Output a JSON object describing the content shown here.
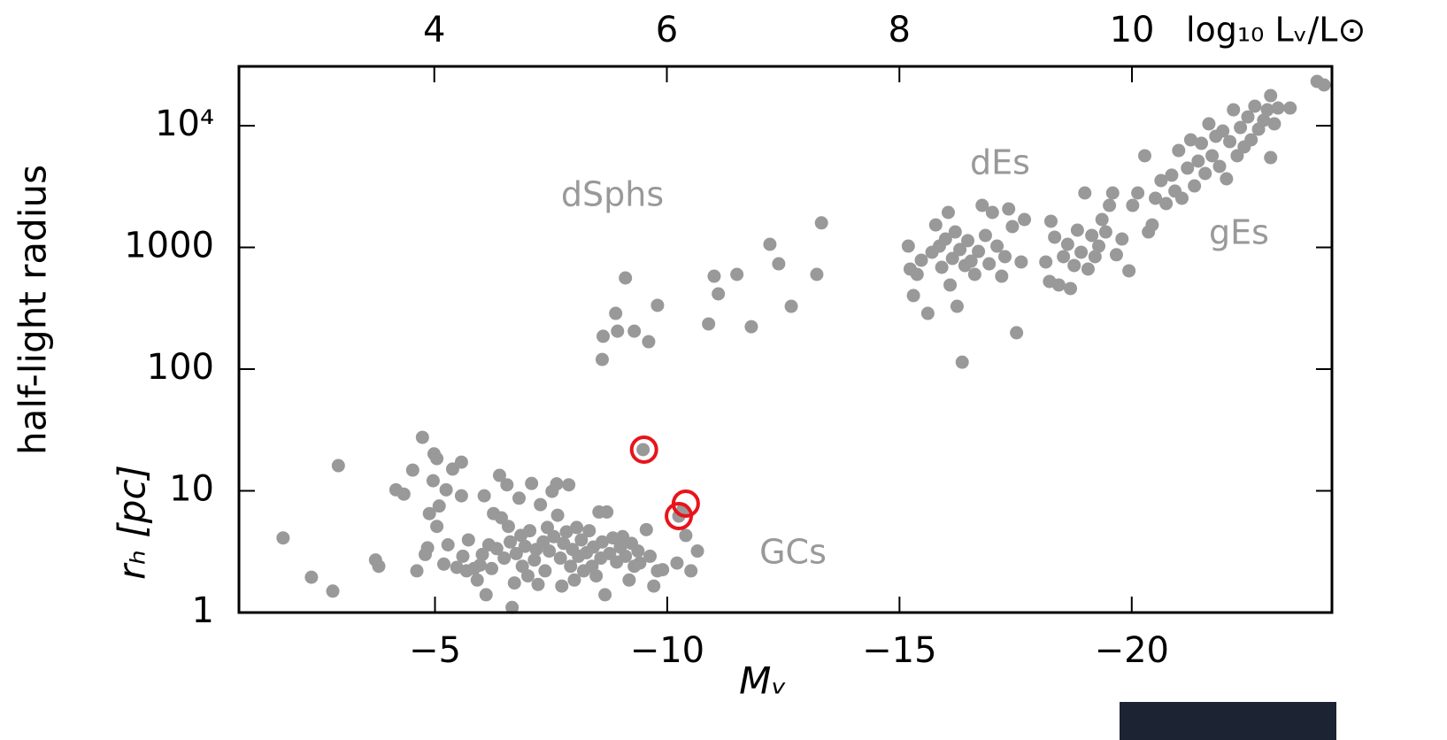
{
  "chart_data": {
    "type": "scatter",
    "x_label": "Mᵥ",
    "x2_label": "log₁₀ Lᵥ/L⊙",
    "y_label": "half-light radius",
    "y_label_2": "rₕ [pc]",
    "xlim": [
      -0.78,
      -24.31
    ],
    "xticks": [
      {
        "value": -5,
        "label": "−5"
      },
      {
        "value": -10,
        "label": "−10"
      },
      {
        "value": -15,
        "label": "−15"
      },
      {
        "value": -20,
        "label": "−20"
      }
    ],
    "x2lim": [
      2.32,
      11.72
    ],
    "x2ticks": [
      4,
      6,
      8,
      10
    ],
    "ylim": [
      1,
      30700
    ],
    "y_scale": "log",
    "yticks": [
      1,
      10,
      100,
      1000,
      {
        "value": 10000,
        "label": "10⁴"
      }
    ],
    "annotations": [
      {
        "text": "dSphs"
      },
      {
        "text": "dEs"
      },
      {
        "text": "gEs"
      },
      {
        "text": "GCs"
      }
    ],
    "series": [
      {
        "color": "#999999",
        "marker": "dot",
        "x": [
          -1.73,
          -2.34,
          -2.8,
          -2.92,
          -3.72,
          -3.79,
          -4.16,
          -4.33,
          -4.52,
          -4.61,
          -4.73,
          -4.79,
          -4.84,
          -4.88,
          -4.96,
          -4.98,
          -5.04,
          -5.04,
          -5.09,
          -5.19,
          -5.24,
          -5.28,
          -5.38,
          -5.47,
          -5.57,
          -5.57,
          -5.6,
          -5.68,
          -5.72,
          -5.84,
          -5.91,
          -5.97,
          -6.02,
          -6.06,
          -6.1,
          -6.16,
          -6.22,
          -6.26,
          -6.33,
          -6.39,
          -6.43,
          -6.49,
          -6.55,
          -6.58,
          -6.62,
          -6.66,
          -6.71,
          -6.75,
          -6.81,
          -6.85,
          -6.88,
          -6.94,
          -7.0,
          -7.04,
          -7.08,
          -7.14,
          -7.18,
          -7.22,
          -7.27,
          -7.33,
          -7.37,
          -7.42,
          -7.46,
          -7.52,
          -7.56,
          -7.62,
          -7.64,
          -7.7,
          -7.73,
          -7.77,
          -7.83,
          -7.88,
          -7.92,
          -7.96,
          -8.0,
          -8.05,
          -8.09,
          -8.15,
          -8.2,
          -8.26,
          -8.32,
          -8.38,
          -8.41,
          -8.47,
          -8.53,
          -8.57,
          -8.6,
          -8.66,
          -8.7,
          -8.76,
          -8.83,
          -8.91,
          -8.99,
          -9.04,
          -9.1,
          -9.18,
          -9.23,
          -9.29,
          -9.37,
          -9.41,
          -9.48,
          -9.55,
          -9.63,
          -9.71,
          -9.79,
          -9.9,
          -10.21,
          -10.25,
          -10.34,
          -10.4,
          -10.51,
          -10.65,
          -8.6,
          -8.62,
          -8.89,
          -8.93,
          -9.1,
          -9.29,
          -9.6,
          -9.79,
          -10.89,
          -11.01,
          -11.1,
          -11.5,
          -11.81,
          -12.21,
          -12.4,
          -12.67,
          -13.22,
          -13.32,
          -15.19,
          -15.23,
          -15.3,
          -15.38,
          -15.47,
          -15.61,
          -15.7,
          -15.78,
          -15.86,
          -15.91,
          -15.99,
          -16.05,
          -16.09,
          -16.14,
          -16.2,
          -16.24,
          -16.3,
          -16.35,
          -16.41,
          -16.47,
          -16.54,
          -16.62,
          -16.7,
          -16.78,
          -16.85,
          -16.93,
          -17.0,
          -17.1,
          -17.2,
          -17.27,
          -17.35,
          -17.43,
          -17.52,
          -17.62,
          -17.69,
          -18.15,
          -18.23,
          -18.26,
          -18.34,
          -18.43,
          -18.53,
          -18.62,
          -18.68,
          -18.76,
          -18.83,
          -18.91,
          -18.99,
          -19.06,
          -19.14,
          -19.21,
          -19.29,
          -19.36,
          -19.44,
          -19.52,
          -19.59,
          -19.67,
          -19.79,
          -19.94,
          -20.02,
          -20.13,
          -20.28,
          -20.36,
          -20.44,
          -20.51,
          -20.63,
          -20.74,
          -20.86,
          -20.93,
          -21.01,
          -21.08,
          -21.2,
          -21.27,
          -21.35,
          -21.43,
          -21.5,
          -21.58,
          -21.66,
          -21.73,
          -21.81,
          -21.89,
          -21.96,
          -22.04,
          -22.11,
          -22.19,
          -22.27,
          -22.34,
          -22.42,
          -22.5,
          -22.57,
          -22.65,
          -22.73,
          -22.84,
          -22.92,
          -22.99,
          -23.07,
          -23.15,
          -22.99,
          -23.41,
          -23.99,
          -24.14
        ],
        "values": [
          4.1,
          1.95,
          1.5,
          16.1,
          2.7,
          2.4,
          10.2,
          9.4,
          14.8,
          2.2,
          27.5,
          3.0,
          3.4,
          6.5,
          12.1,
          20.1,
          18.4,
          5.1,
          7.5,
          2.5,
          10.2,
          3.6,
          15.1,
          2.35,
          17.2,
          9.1,
          2.9,
          2.2,
          3.95,
          2.3,
          1.85,
          2.45,
          3.0,
          9.1,
          1.4,
          3.6,
          2.3,
          6.5,
          3.35,
          13.4,
          6.0,
          2.8,
          11.2,
          5.1,
          3.8,
          1.1,
          1.75,
          3.05,
          8.7,
          4.3,
          2.4,
          3.5,
          2.0,
          4.7,
          11.5,
          2.7,
          3.3,
          1.7,
          7.7,
          3.8,
          2.2,
          5.0,
          3.2,
          9.9,
          4.2,
          11.4,
          6.3,
          2.8,
          1.65,
          3.7,
          4.6,
          11.2,
          2.4,
          3.3,
          1.85,
          5.0,
          2.9,
          3.95,
          2.2,
          3.1,
          4.7,
          2.4,
          3.45,
          2.0,
          6.7,
          2.8,
          3.8,
          1.4,
          6.7,
          3.05,
          4.1,
          2.6,
          3.45,
          4.2,
          2.9,
          1.85,
          3.7,
          2.4,
          3.2,
          2.55,
          21.8,
          4.8,
          2.9,
          1.65,
          2.2,
          2.25,
          2.55,
          6.2,
          7.0,
          4.3,
          2.2,
          3.2,
          120,
          186,
          287,
          205,
          561,
          205,
          168,
          334,
          235,
          580,
          415,
          600,
          223,
          1060,
          733,
          328,
          600,
          1590,
          1025,
          664,
          402,
          600,
          785,
          287,
          912,
          1530,
          1025,
          686,
          1172,
          1937,
          491,
          811,
          1340,
          328,
          960,
          114,
          710,
          1135,
          771,
          600,
          927,
          2213,
          1254,
          733,
          1937,
          1025,
          580,
          839,
          2070,
          1483,
          199,
          759,
          1694,
          759,
          525,
          1640,
          1213,
          491,
          839,
          1060,
          459,
          710,
          1386,
          912,
          2800,
          664,
          1254,
          839,
          1025,
          1694,
          1340,
          2213,
          2800,
          870,
          1172,
          642,
          2213,
          2800,
          5660,
          1340,
          1530,
          2535,
          3540,
          2290,
          3920,
          2900,
          6250,
          2535,
          4480,
          7650,
          3200,
          5120,
          7160,
          4050,
          10350,
          5660,
          8180,
          4630,
          9040,
          3660,
          7400,
          13500,
          5660,
          9660,
          6690,
          11800,
          7650,
          14460,
          9350,
          11070,
          13500,
          5470,
          10350,
          13960,
          17660,
          13960,
          23100,
          21600
        ]
      },
      {
        "color": "#e8141b",
        "marker": "ring",
        "x": [
          -9.5,
          -10.25,
          -10.4
        ],
        "values": [
          21.8,
          6.2,
          7.85
        ]
      }
    ]
  }
}
